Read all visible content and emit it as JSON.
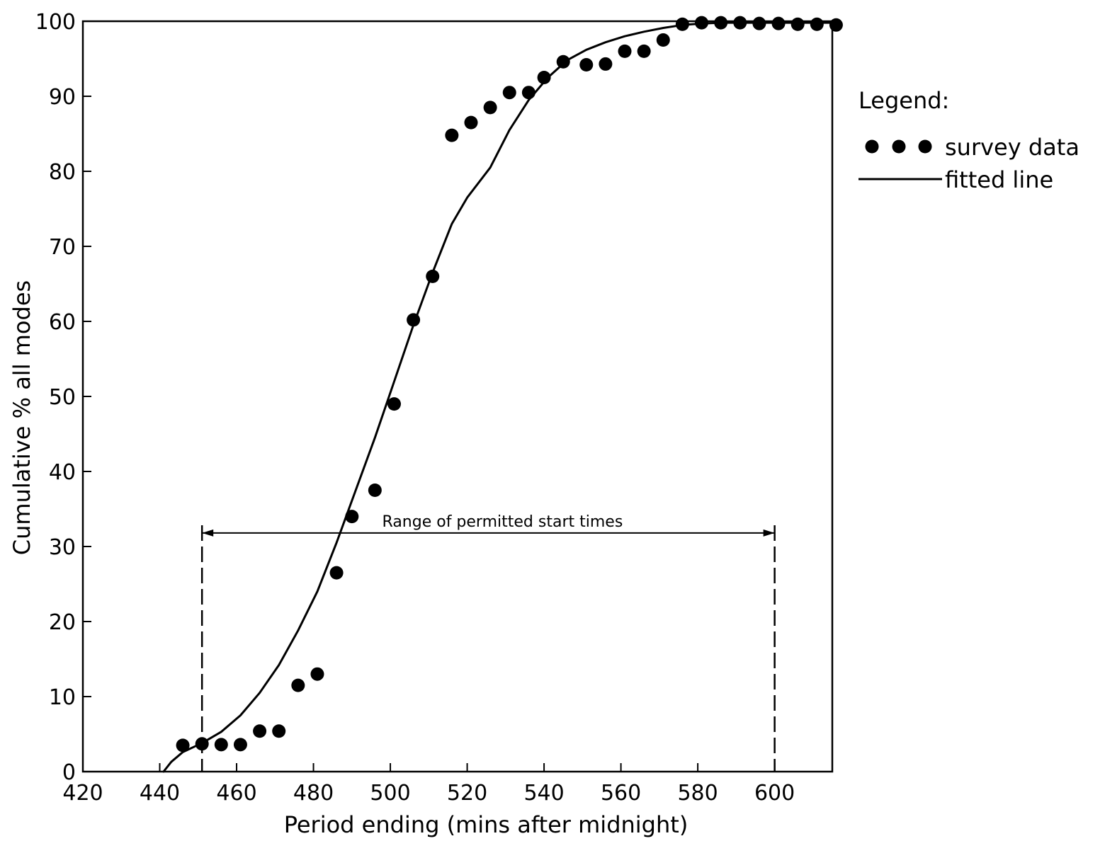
{
  "chart_data": {
    "type": "scatter",
    "xlabel": "Period ending (mins after midnight)",
    "ylabel": "Cumulative % all modes",
    "xlim": [
      420,
      615
    ],
    "ylim": [
      0,
      100
    ],
    "x_ticks": [
      420,
      440,
      460,
      480,
      500,
      520,
      540,
      560,
      580,
      600
    ],
    "y_ticks": [
      0,
      10,
      20,
      30,
      40,
      50,
      60,
      70,
      80,
      90,
      100
    ],
    "grid": false,
    "legend": {
      "title": "Legend:",
      "placement": "right",
      "entries": [
        {
          "label": "survey data",
          "symbol": "dots"
        },
        {
          "label": "fitted line",
          "symbol": "line"
        }
      ]
    },
    "series": [
      {
        "name": "survey data",
        "type": "scatter",
        "x": [
          446,
          451,
          456,
          461,
          466,
          471,
          476,
          481,
          486,
          490,
          496,
          501,
          506,
          511,
          516,
          521,
          526,
          531,
          536,
          540,
          545,
          551,
          556,
          561,
          566,
          571,
          576,
          581,
          586,
          591,
          596,
          601,
          606,
          611,
          616
        ],
        "y": [
          3.5,
          3.7,
          3.6,
          3.6,
          5.4,
          5.4,
          11.5,
          13.0,
          26.5,
          34.0,
          37.5,
          49.0,
          60.2,
          66.0,
          84.8,
          86.5,
          88.5,
          90.5,
          90.5,
          92.5,
          94.6,
          94.2,
          94.3,
          96.0,
          96.0,
          97.5,
          99.6,
          99.8,
          99.8,
          99.8,
          99.7,
          99.7,
          99.6,
          99.6,
          99.5
        ]
      },
      {
        "name": "fitted line",
        "type": "line",
        "x": [
          441,
          443,
          446,
          451,
          456,
          461,
          466,
          471,
          476,
          481,
          486,
          491,
          496,
          501,
          506,
          511,
          516,
          520,
          526,
          531,
          536,
          541,
          546,
          551,
          556,
          561,
          566,
          571,
          576,
          581,
          586,
          591,
          596,
          601,
          606,
          611,
          615
        ],
        "y": [
          0,
          1.3,
          2.6,
          3.8,
          5.3,
          7.5,
          10.5,
          14.2,
          18.8,
          24.0,
          30.5,
          37.5,
          44.5,
          52.0,
          59.5,
          66.5,
          73.0,
          76.5,
          80.5,
          85.5,
          89.5,
          92.5,
          94.8,
          96.2,
          97.2,
          98.0,
          98.6,
          99.1,
          99.5,
          99.7,
          99.8,
          99.8,
          99.8,
          99.8,
          99.8,
          99.8,
          99.8
        ]
      }
    ],
    "annotations": [
      {
        "text": "Range of permitted start times",
        "type": "range",
        "x_start": 451,
        "x_end": 600,
        "y": 31.8
      }
    ]
  }
}
